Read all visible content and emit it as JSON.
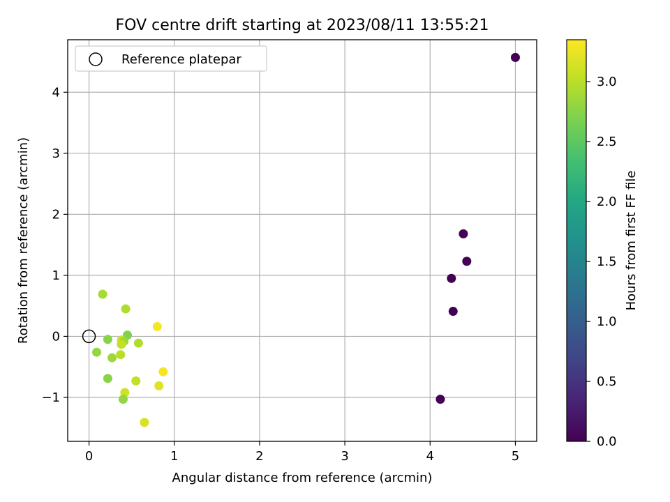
{
  "chart_data": {
    "type": "scatter",
    "title": "FOV centre drift starting at 2023/08/11 13:55:21",
    "xlabel": "Angular distance from reference (arcmin)",
    "ylabel": "Rotation from reference (arcmin)",
    "xlim": [
      -0.25,
      5.25
    ],
    "ylim": [
      -1.72,
      4.86
    ],
    "xticks": [
      0,
      1,
      2,
      3,
      4,
      5
    ],
    "xtick_labels": [
      "0",
      "1",
      "2",
      "3",
      "4",
      "5"
    ],
    "yticks": [
      -1,
      0,
      1,
      2,
      3,
      4
    ],
    "ytick_labels": [
      "−1",
      "0",
      "1",
      "2",
      "3",
      "4"
    ],
    "grid": true,
    "legend": {
      "placement": "top-left",
      "entries": [
        {
          "label": "Reference platepar",
          "marker": "open-circle",
          "color": "#000000"
        }
      ]
    },
    "reference_point": {
      "x": 0,
      "y": 0
    },
    "colorbar": {
      "label": "Hours from first FF file",
      "colormap": "viridis",
      "range": [
        0,
        3.35
      ],
      "ticks": [
        0.0,
        0.5,
        1.0,
        1.5,
        2.0,
        2.5,
        3.0
      ],
      "tick_labels": [
        "0.0",
        "0.5",
        "1.0",
        "1.5",
        "2.0",
        "2.5",
        "3.0"
      ]
    },
    "points": [
      {
        "x": 5.0,
        "y": 4.57,
        "c": 0.0
      },
      {
        "x": 4.39,
        "y": 1.68,
        "c": 0.0
      },
      {
        "x": 4.43,
        "y": 1.23,
        "c": 0.0
      },
      {
        "x": 4.25,
        "y": 0.95,
        "c": 0.0
      },
      {
        "x": 4.27,
        "y": 0.41,
        "c": 0.0
      },
      {
        "x": 4.12,
        "y": -1.03,
        "c": 0.0
      },
      {
        "x": 0.16,
        "y": 0.69,
        "c": 2.9
      },
      {
        "x": 0.43,
        "y": 0.45,
        "c": 2.95
      },
      {
        "x": 0.8,
        "y": 0.16,
        "c": 3.3
      },
      {
        "x": 0.45,
        "y": 0.02,
        "c": 2.7
      },
      {
        "x": 0.22,
        "y": -0.05,
        "c": 2.75
      },
      {
        "x": 0.38,
        "y": -0.06,
        "c": 3.1
      },
      {
        "x": 0.41,
        "y": -0.08,
        "c": 2.85
      },
      {
        "x": 0.38,
        "y": -0.13,
        "c": 3.05
      },
      {
        "x": 0.58,
        "y": -0.11,
        "c": 2.95
      },
      {
        "x": 0.09,
        "y": -0.26,
        "c": 2.8
      },
      {
        "x": 0.37,
        "y": -0.3,
        "c": 3.0
      },
      {
        "x": 0.27,
        "y": -0.35,
        "c": 2.85
      },
      {
        "x": 0.87,
        "y": -0.58,
        "c": 3.3
      },
      {
        "x": 0.22,
        "y": -0.69,
        "c": 2.75
      },
      {
        "x": 0.55,
        "y": -0.73,
        "c": 3.05
      },
      {
        "x": 0.82,
        "y": -0.81,
        "c": 3.2
      },
      {
        "x": 0.42,
        "y": -0.92,
        "c": 3.1
      },
      {
        "x": 0.4,
        "y": -1.03,
        "c": 2.8
      },
      {
        "x": 0.65,
        "y": -1.41,
        "c": 3.15
      }
    ]
  }
}
